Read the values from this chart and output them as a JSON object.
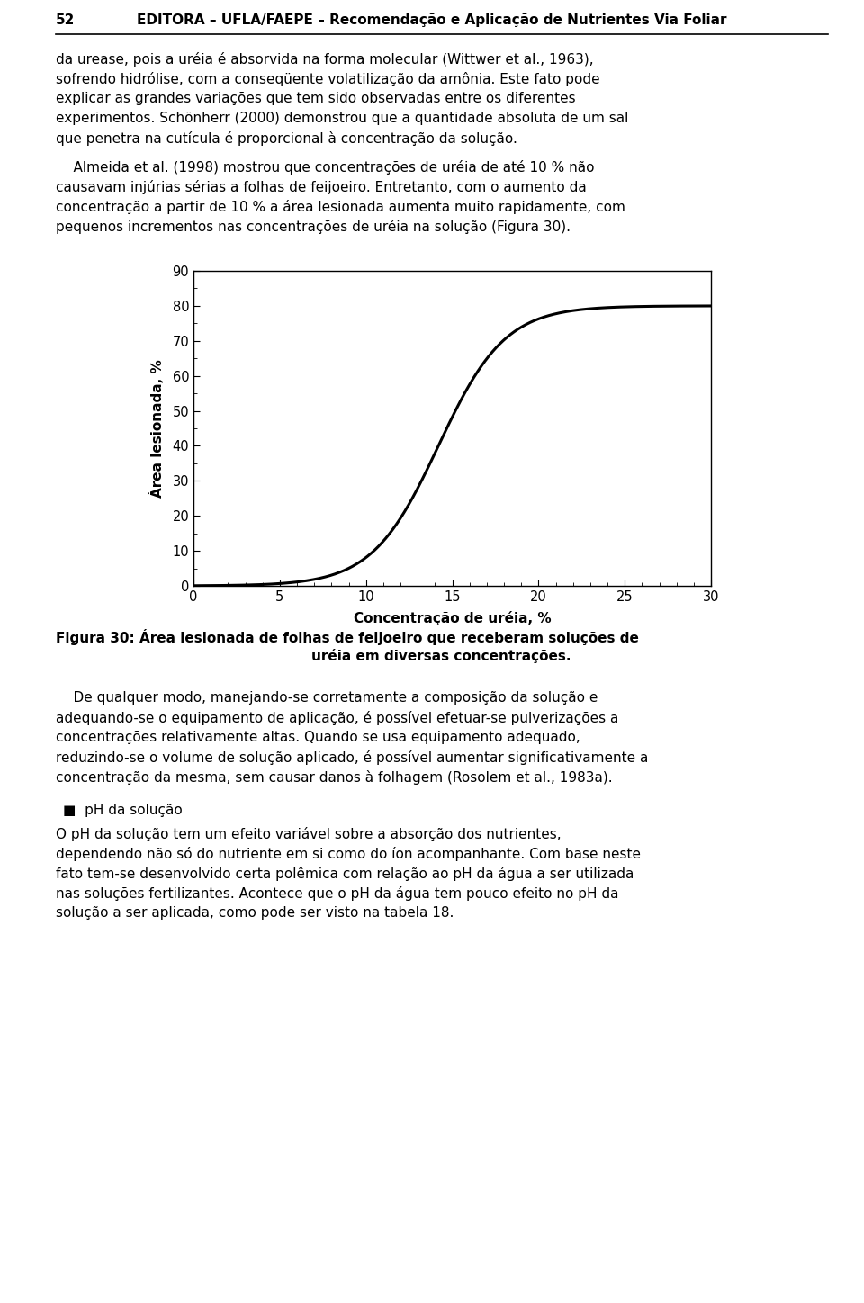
{
  "page_width": 9.6,
  "page_height": 14.48,
  "dpi": 100,
  "bg_color": "#ffffff",
  "text_color": "#000000",
  "header_text": "EDITORA – UFLA/FAEPE – Recomendação e Aplicação de Nutrientes Via Foliar",
  "page_number": "52",
  "body_font_size": 11.0,
  "para1": "da urease, pois a uréia é absorvida na forma molecular (Wittwer et al., 1963), sofrendo hidrólise, com a conseqüente volatilização da amônia. Este fato pode explicar as grandes variações que tem sido observadas entre os diferentes experimentos. Schönherr (2000) demonstrou que a quantidade absoluta de um sal que penetra na cutícula é proporcional à concentração da solução.",
  "para2_indent": "    Almeida et al. (1998) mostrou que concentrações de uréia de até 10 % não causavam injúrias sérias a folhas de feijoeiro. Entretanto, com o aumento da concentração a partir de 10 % a área lesionada aumenta muito rapidamente, com pequenos incrementos nas concentrações de uréia na solução (Figura 30).",
  "xlabel": "Concentração de uréia, %",
  "ylabel": "Área lesionada, %",
  "xlim": [
    0,
    30
  ],
  "ylim": [
    0,
    90
  ],
  "xticks": [
    0,
    5,
    10,
    15,
    20,
    25,
    30
  ],
  "yticks": [
    0,
    10,
    20,
    30,
    40,
    50,
    60,
    70,
    80,
    90
  ],
  "line_color": "#000000",
  "line_width": 2.2,
  "sigmoid_L": 80.0,
  "sigmoid_k": 0.52,
  "sigmoid_x0": 14.2,
  "caption_line1": "Figura 30: Área lesionada de folhas de feijoeiro que receberam soluções de",
  "caption_line2": "uréia em diversas concentrações.",
  "after_para": "    De qualquer modo, manejando-se corretamente a composição da solução e adequando-se o equipamento de aplicação, é possível efetuar-se pulverizações a concentrações relativamente altas. Quando se usa equipamento adequado, reduzindo-se o volume de solução aplicado, é possível aumentar significativamente a concentração da mesma, sem causar danos à folhagem (Rosolem et al., 1983a).",
  "bullet_label": "■",
  "bullet_header": "pH da solução",
  "bullet_para": "O pH da solução tem um efeito variável sobre a absorção dos nutrientes, dependendo não só do nutriente em si como do íon acompanhante. Com base neste fato tem-se desenvolvido certa polêmica com relação ao pH da água a ser utilizada nas soluções fertilizantes. Acontece que o pH da água tem pouco efeito no pH da solução a ser aplicada, como pode ser visto na tabela 18."
}
